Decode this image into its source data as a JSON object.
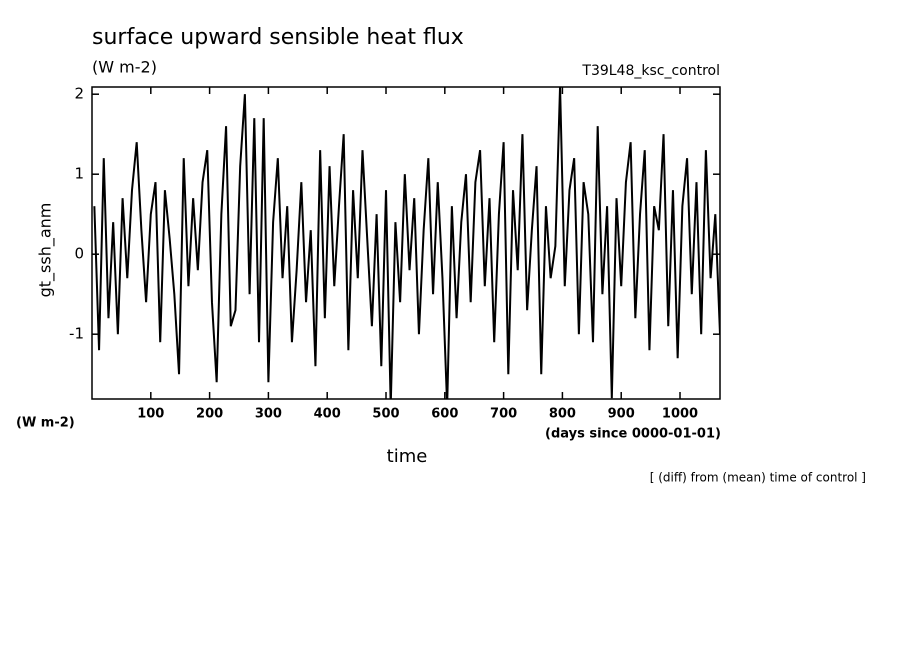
{
  "chart_data": {
    "type": "line",
    "title": "surface upward sensible heat flux",
    "units_top": "(W m-2)",
    "run_label": "T39L48_ksc_control",
    "y_label": "gt_ssh_anm",
    "units_left": "(W m-2)",
    "x_label": "time",
    "x_units": "(days since 0000-01-01)",
    "note": "[ (diff) from (mean) time of control ]",
    "xlim": [
      0,
      1068
    ],
    "ylim": [
      -1.81,
      2.09
    ],
    "xticks": [
      100,
      200,
      300,
      400,
      500,
      600,
      700,
      800,
      900,
      1000
    ],
    "yticks": [
      -1,
      0,
      1,
      2
    ],
    "color": "#000000",
    "x": [
      4,
      12,
      20,
      28,
      36,
      44,
      52,
      60,
      68,
      76,
      84,
      92,
      100,
      108,
      116,
      124,
      132,
      140,
      148,
      156,
      164,
      172,
      180,
      188,
      196,
      204,
      212,
      220,
      228,
      236,
      244,
      252,
      260,
      268,
      276,
      284,
      292,
      300,
      308,
      316,
      324,
      332,
      340,
      348,
      356,
      364,
      372,
      380,
      388,
      396,
      404,
      412,
      420,
      428,
      436,
      444,
      452,
      460,
      468,
      476,
      484,
      492,
      500,
      508,
      516,
      524,
      532,
      540,
      548,
      556,
      564,
      572,
      580,
      588,
      596,
      604,
      612,
      620,
      628,
      636,
      644,
      652,
      660,
      668,
      676,
      684,
      692,
      700,
      708,
      716,
      724,
      732,
      740,
      748,
      756,
      764,
      772,
      780,
      788,
      796,
      804,
      812,
      820,
      828,
      836,
      844,
      852,
      860,
      868,
      876,
      884,
      892,
      900,
      908,
      916,
      924,
      932,
      940,
      948,
      956,
      964,
      972,
      980,
      988,
      996,
      1004,
      1012,
      1020,
      1028,
      1036,
      1044,
      1052,
      1060,
      1068
    ],
    "values": [
      0.6,
      -1.2,
      1.2,
      -0.8,
      0.4,
      -1.0,
      0.7,
      -0.3,
      0.8,
      1.4,
      0.3,
      -0.6,
      0.5,
      0.9,
      -1.1,
      0.8,
      0.2,
      -0.5,
      -1.5,
      1.2,
      -0.4,
      0.7,
      -0.2,
      0.9,
      1.3,
      -0.6,
      -1.6,
      0.5,
      1.6,
      -0.9,
      -0.7,
      1.1,
      2.0,
      -0.5,
      1.7,
      -1.1,
      1.7,
      -1.6,
      0.4,
      1.2,
      -0.3,
      0.6,
      -1.1,
      -0.2,
      0.9,
      -0.6,
      0.3,
      -1.4,
      1.3,
      -0.8,
      1.1,
      -0.4,
      0.6,
      1.5,
      -1.2,
      0.8,
      -0.3,
      1.3,
      0.2,
      -0.9,
      0.5,
      -1.4,
      0.8,
      -1.9,
      0.4,
      -0.6,
      1.0,
      -0.2,
      0.7,
      -1.0,
      0.3,
      1.2,
      -0.5,
      0.9,
      -0.3,
      -1.9,
      0.6,
      -0.8,
      0.4,
      1.0,
      -0.6,
      0.9,
      1.3,
      -0.4,
      0.7,
      -1.1,
      0.5,
      1.4,
      -1.5,
      0.8,
      -0.2,
      1.5,
      -0.7,
      0.3,
      1.1,
      -1.5,
      0.6,
      -0.3,
      0.1,
      2.1,
      -0.4,
      0.8,
      1.2,
      -1.0,
      0.9,
      0.5,
      -1.1,
      1.6,
      -0.5,
      0.6,
      -1.8,
      0.7,
      -0.4,
      0.9,
      1.4,
      -0.8,
      0.5,
      1.3,
      -1.2,
      0.6,
      0.3,
      1.5,
      -0.9,
      0.8,
      -1.3,
      0.6,
      1.2,
      -0.5,
      0.9,
      -1.0,
      1.3,
      -0.3,
      0.5,
      -1.0
    ]
  }
}
